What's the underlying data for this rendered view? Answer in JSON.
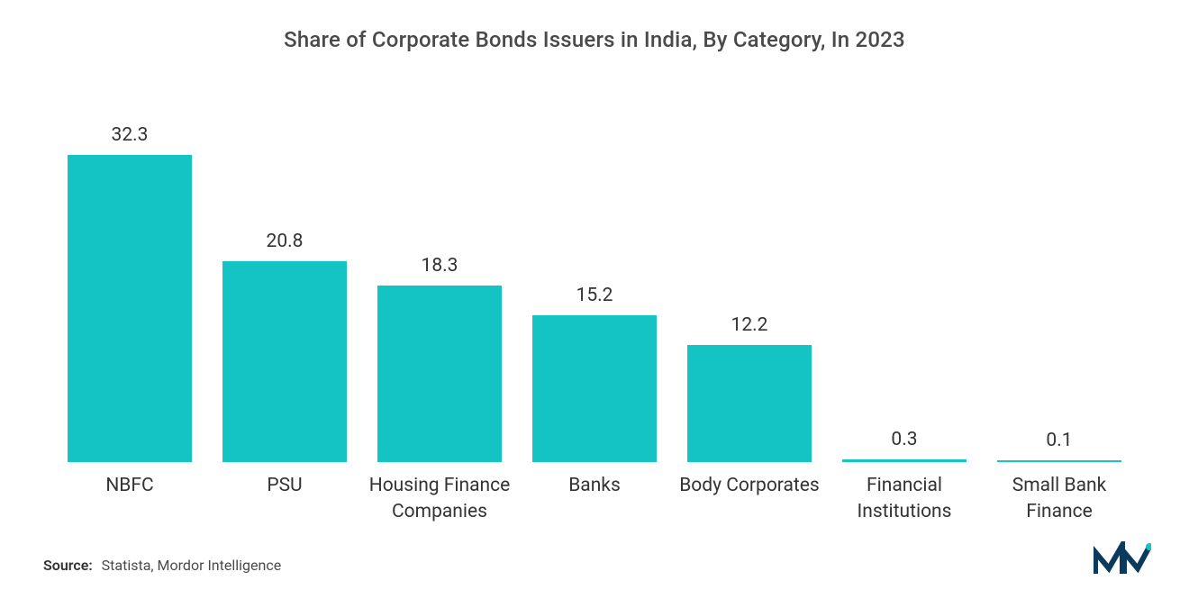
{
  "chart": {
    "type": "bar",
    "title": "Share of Corporate Bonds Issuers in India, By Category, In 2023",
    "title_fontsize": 24,
    "title_color": "#4a4a4a",
    "background_color": "#ffffff",
    "categories": [
      "NBFC",
      "PSU",
      "Housing Finance Companies",
      "Banks",
      "Body Corporates",
      "Financial Institutions",
      "Small Bank Finance"
    ],
    "values": [
      32.3,
      20.8,
      18.3,
      15.2,
      12.2,
      0.3,
      0.1
    ],
    "value_labels": [
      "32.3",
      "20.8",
      "18.3",
      "15.2",
      "12.2",
      "0.3",
      "0.1"
    ],
    "bar_color": "#14c4c4",
    "value_label_color": "#333333",
    "value_label_fontsize": 21,
    "category_label_color": "#333333",
    "category_label_fontsize": 21,
    "y_max": 35,
    "y_min": 0,
    "bar_width_pct": 88,
    "grid": false,
    "axes_visible": false
  },
  "source": {
    "label": "Source:",
    "text": "Statista, Mordor Intelligence",
    "label_fontsize": 16,
    "label_fontweight": 600,
    "text_color": "#4a4a4a"
  },
  "logo": {
    "name": "mordor-intelligence-logo",
    "stroke_color": "#0a3b5c",
    "accent_color": "#14c4c4"
  }
}
